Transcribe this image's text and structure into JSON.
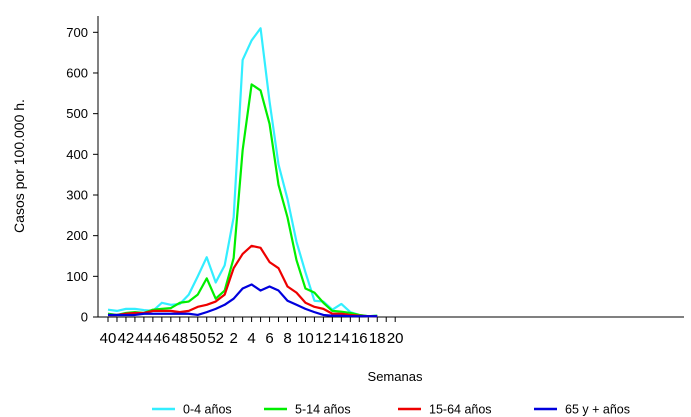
{
  "chart_data": {
    "type": "line",
    "xlabel": "Semanas",
    "ylabel": "Casos por 100.000 h.",
    "ylim": [
      0,
      740
    ],
    "yticks": [
      0,
      100,
      200,
      300,
      400,
      500,
      600,
      700
    ],
    "x_tick_labels": [
      "40",
      "42",
      "44",
      "46",
      "48",
      "50",
      "52",
      "2",
      "4",
      "6",
      "8",
      "10",
      "12",
      "14",
      "16",
      "18",
      "20"
    ],
    "categories": [
      "40",
      "41",
      "42",
      "43",
      "44",
      "45",
      "46",
      "47",
      "48",
      "49",
      "50",
      "51",
      "52",
      "1",
      "2",
      "3",
      "4",
      "5",
      "6",
      "7",
      "8",
      "9",
      "10",
      "11",
      "12",
      "13",
      "14",
      "15",
      "16",
      "17",
      "18"
    ],
    "grid": false,
    "legend_position": "bottom",
    "series": [
      {
        "name": "0-4 años",
        "color": "#33eeff",
        "values": [
          18,
          15,
          20,
          20,
          17,
          15,
          35,
          30,
          32,
          55,
          100,
          147,
          85,
          127,
          245,
          632,
          680,
          710,
          530,
          375,
          290,
          185,
          110,
          40,
          38,
          18,
          32,
          12,
          5,
          2,
          3
        ]
      },
      {
        "name": "5-14 años",
        "color": "#00ee00",
        "values": [
          8,
          5,
          10,
          12,
          10,
          18,
          20,
          22,
          35,
          38,
          55,
          95,
          45,
          65,
          145,
          410,
          572,
          557,
          475,
          325,
          245,
          140,
          70,
          60,
          35,
          15,
          13,
          10,
          5,
          2,
          3
        ]
      },
      {
        "name": "15-64 años",
        "color": "#ee0000",
        "values": [
          5,
          5,
          8,
          10,
          10,
          15,
          15,
          15,
          12,
          15,
          25,
          30,
          38,
          55,
          120,
          155,
          175,
          170,
          135,
          120,
          75,
          60,
          35,
          25,
          20,
          8,
          8,
          5,
          3,
          2,
          2
        ]
      },
      {
        "name": "65 y + años",
        "color": "#0000dd",
        "values": [
          5,
          5,
          5,
          5,
          8,
          8,
          8,
          8,
          8,
          8,
          5,
          12,
          20,
          30,
          45,
          70,
          80,
          65,
          75,
          65,
          40,
          30,
          20,
          12,
          5,
          3,
          3,
          2,
          2,
          2,
          2
        ]
      }
    ]
  }
}
